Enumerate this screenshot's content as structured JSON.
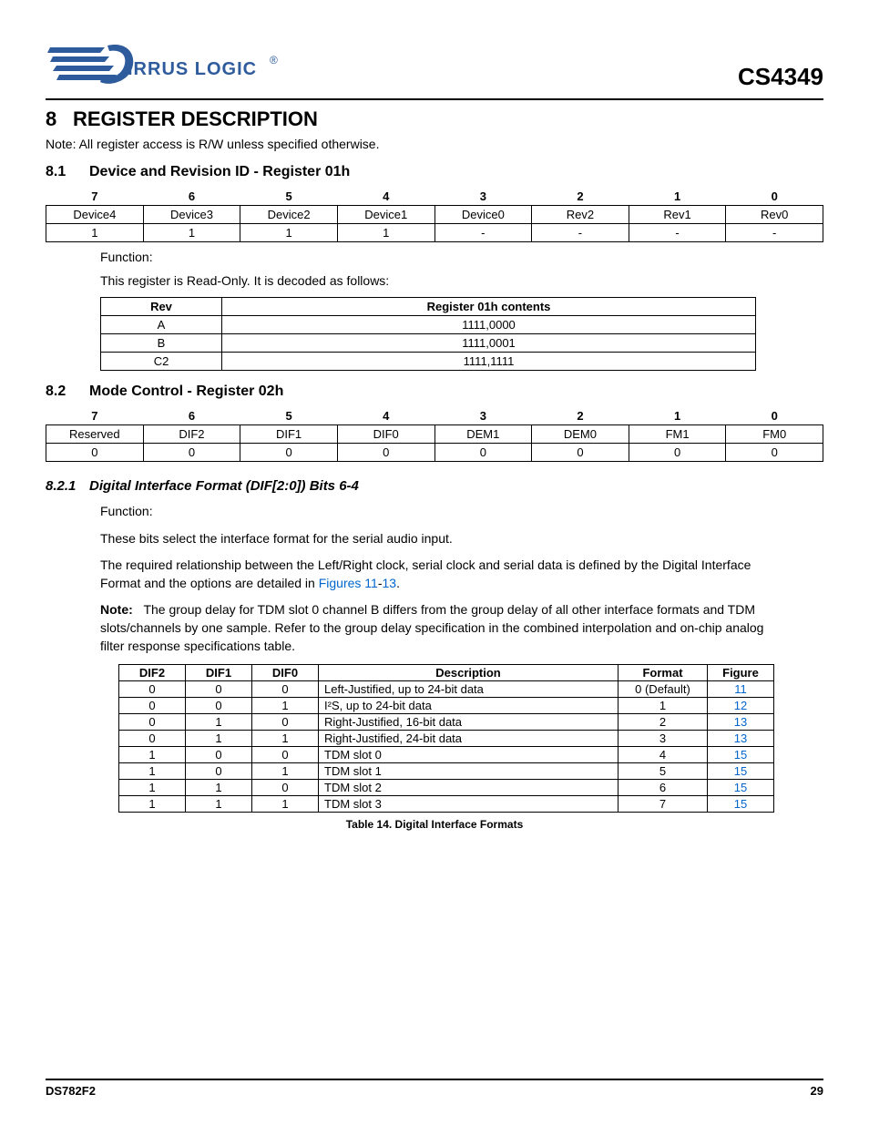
{
  "header": {
    "logo_text": "CIRRUS LOGIC",
    "logo_color": "#2e5b9c",
    "product_code": "CS4349"
  },
  "section": {
    "number": "8",
    "title": "REGISTER DESCRIPTION",
    "note": "Note: All register access is R/W unless specified otherwise."
  },
  "sub_8_1": {
    "number": "8.1",
    "title": "Device and Revision ID - Register 01h",
    "bits_header": [
      "7",
      "6",
      "5",
      "4",
      "3",
      "2",
      "1",
      "0"
    ],
    "bits_row1": [
      "Device4",
      "Device3",
      "Device2",
      "Device1",
      "Device0",
      "Rev2",
      "Rev1",
      "Rev0"
    ],
    "bits_row2": [
      "1",
      "1",
      "1",
      "1",
      "-",
      "-",
      "-",
      "-"
    ],
    "function_label": "Function:",
    "function_text": "This register is Read-Only. It is decoded as follows:",
    "rev_headers": [
      "Rev",
      "Register 01h contents"
    ],
    "rev_rows": [
      [
        "A",
        "1111,0000"
      ],
      [
        "B",
        "1111,0001"
      ],
      [
        "C2",
        "1111,1111"
      ]
    ]
  },
  "sub_8_2": {
    "number": "8.2",
    "title": "Mode Control - Register 02h",
    "bits_header": [
      "7",
      "6",
      "5",
      "4",
      "3",
      "2",
      "1",
      "0"
    ],
    "bits_row1": [
      "Reserved",
      "DIF2",
      "DIF1",
      "DIF0",
      "DEM1",
      "DEM0",
      "FM1",
      "FM0"
    ],
    "bits_row2": [
      "0",
      "0",
      "0",
      "0",
      "0",
      "0",
      "0",
      "0"
    ]
  },
  "sub_8_2_1": {
    "number": "8.2.1",
    "title": "Digital Interface Format (DIF[2:0]) Bits 6-4",
    "function_label": "Function:",
    "p1": "These bits select the interface format for the serial audio input.",
    "p2a": "The required relationship between the Left/Right clock, serial clock and serial data is defined by the Digital Interface Format and the options are detailed in ",
    "p2_link1": "Figures 11",
    "p2_dash": "-",
    "p2_link2": "13",
    "p2b": ".",
    "note_label": "Note:",
    "note_text": "The group delay for TDM slot 0 channel B differs from the group delay of all other interface formats and TDM slots/channels by one sample. Refer to the group delay specification in the combined interpolation and on-chip analog filter response specifications table.",
    "dif_headers": [
      "DIF2",
      "DIF1",
      "DIF0",
      "Description",
      "Format",
      "Figure"
    ],
    "dif_rows": [
      {
        "d2": "0",
        "d1": "0",
        "d0": "0",
        "desc": "Left-Justified, up to 24-bit data",
        "fmt": "0 (Default)",
        "fig": "11"
      },
      {
        "d2": "0",
        "d1": "0",
        "d0": "1",
        "desc": "I²S, up to 24-bit data",
        "fmt": "1",
        "fig": "12"
      },
      {
        "d2": "0",
        "d1": "1",
        "d0": "0",
        "desc": "Right-Justified, 16-bit data",
        "fmt": "2",
        "fig": "13"
      },
      {
        "d2": "0",
        "d1": "1",
        "d0": "1",
        "desc": "Right-Justified, 24-bit data",
        "fmt": "3",
        "fig": "13"
      },
      {
        "d2": "1",
        "d1": "0",
        "d0": "0",
        "desc": "TDM slot 0",
        "fmt": "4",
        "fig": "15"
      },
      {
        "d2": "1",
        "d1": "0",
        "d0": "1",
        "desc": "TDM slot 1",
        "fmt": "5",
        "fig": "15"
      },
      {
        "d2": "1",
        "d1": "1",
        "d0": "0",
        "desc": "TDM slot 2",
        "fmt": "6",
        "fig": "15"
      },
      {
        "d2": "1",
        "d1": "1",
        "d0": "1",
        "desc": "TDM slot 3",
        "fmt": "7",
        "fig": "15"
      }
    ],
    "table_caption": "Table 14. Digital Interface Formats"
  },
  "footer": {
    "doc_id": "DS782F2",
    "page_num": "29"
  }
}
